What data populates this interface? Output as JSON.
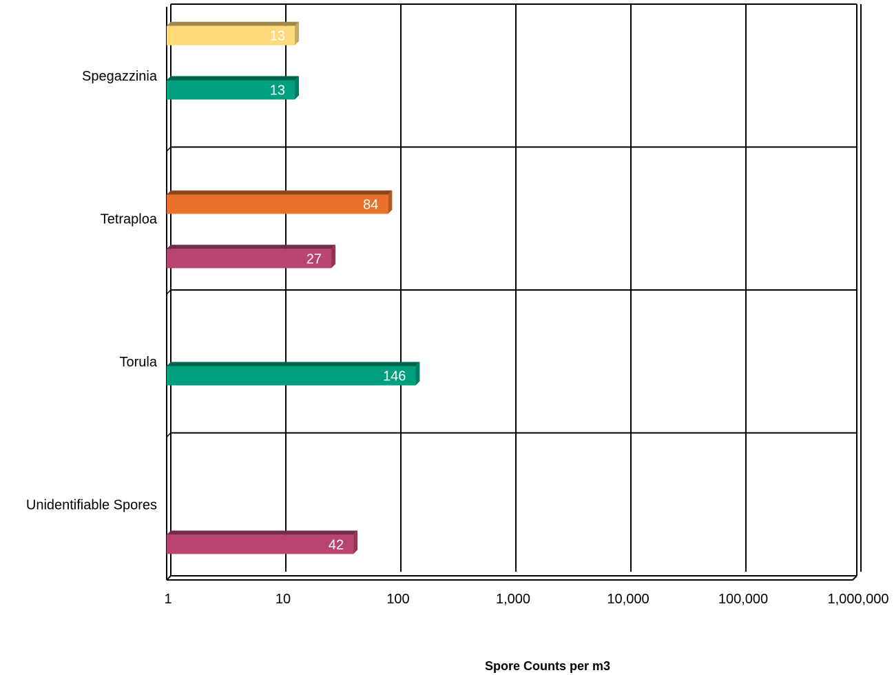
{
  "chart_data": {
    "type": "bar",
    "orientation": "horizontal",
    "style": "3d",
    "x_scale": "log",
    "xlim": [
      1,
      1000000
    ],
    "x_ticks": [
      1,
      10,
      100,
      1000,
      10000,
      100000,
      1000000
    ],
    "x_tick_labels": [
      "1",
      "10",
      "100",
      "1,000",
      "10,000",
      "100,000",
      "1,000,000"
    ],
    "xlabel": "Spore Counts per m3",
    "ylabel": "",
    "title": "",
    "grid": true,
    "legend": "none",
    "categories": [
      "Spegazzinia",
      "Tetraploa",
      "Torula",
      "Unidentifiable Spores"
    ],
    "series": [
      {
        "color": "#FFD97A",
        "values": [
          13,
          null,
          null,
          null
        ]
      },
      {
        "color": "#E8712B",
        "values": [
          null,
          84,
          null,
          null
        ]
      },
      {
        "color": "#00A07E",
        "values": [
          13,
          null,
          146,
          null
        ]
      },
      {
        "color": "#B84470",
        "values": [
          null,
          27,
          null,
          42
        ]
      }
    ]
  }
}
